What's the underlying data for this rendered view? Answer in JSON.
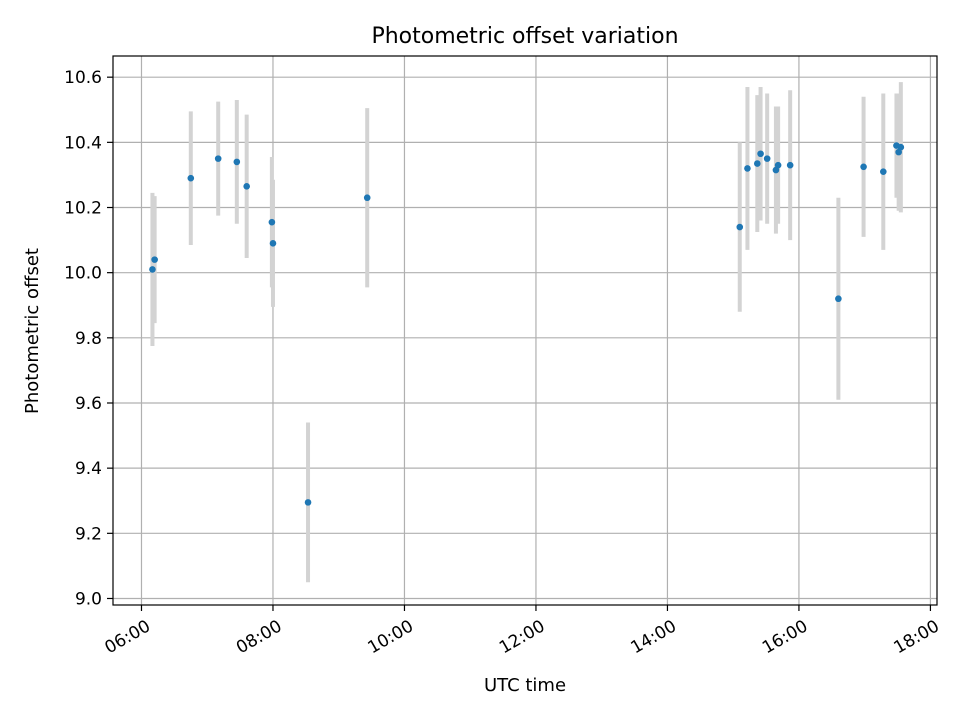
{
  "chart_data": {
    "type": "scatter",
    "title": "Photometric offset variation",
    "xlabel": "UTC time",
    "ylabel": "Photometric offset",
    "x_ticks": [
      "06:00",
      "08:00",
      "10:00",
      "12:00",
      "14:00",
      "16:00",
      "18:00"
    ],
    "y_ticks": [
      "9.0",
      "9.2",
      "9.4",
      "9.6",
      "9.8",
      "10.0",
      "10.2",
      "10.4",
      "10.6"
    ],
    "xlim": [
      "05:34",
      "18:06"
    ],
    "ylim": [
      8.98,
      10.665
    ],
    "grid": true,
    "colors": {
      "points": "#1f77b4",
      "errorbars": "#d3d3d3",
      "grid": "#b0b0b0"
    },
    "series": [
      {
        "points": [
          {
            "time": "06:10",
            "y": 10.01,
            "err": 0.235
          },
          {
            "time": "06:12",
            "y": 10.04,
            "err": 0.195
          },
          {
            "time": "06:45",
            "y": 10.29,
            "err": 0.205
          },
          {
            "time": "07:10",
            "y": 10.35,
            "err": 0.175
          },
          {
            "time": "07:27",
            "y": 10.34,
            "err": 0.19
          },
          {
            "time": "07:36",
            "y": 10.265,
            "err": 0.22
          },
          {
            "time": "07:59",
            "y": 10.155,
            "err": 0.2
          },
          {
            "time": "08:00",
            "y": 10.09,
            "err": 0.195
          },
          {
            "time": "08:32",
            "y": 9.295,
            "err": 0.245
          },
          {
            "time": "09:26",
            "y": 10.23,
            "err": 0.275
          },
          {
            "time": "15:06",
            "y": 10.14,
            "err": 0.26
          },
          {
            "time": "15:13",
            "y": 10.32,
            "err": 0.25
          },
          {
            "time": "15:22",
            "y": 10.335,
            "err": 0.21
          },
          {
            "time": "15:25",
            "y": 10.365,
            "err": 0.205
          },
          {
            "time": "15:31",
            "y": 10.35,
            "err": 0.2
          },
          {
            "time": "15:39",
            "y": 10.315,
            "err": 0.195
          },
          {
            "time": "15:41",
            "y": 10.33,
            "err": 0.18
          },
          {
            "time": "15:52",
            "y": 10.33,
            "err": 0.23
          },
          {
            "time": "16:36",
            "y": 9.92,
            "err": 0.31
          },
          {
            "time": "16:59",
            "y": 10.325,
            "err": 0.215
          },
          {
            "time": "17:17",
            "y": 10.31,
            "err": 0.24
          },
          {
            "time": "17:29",
            "y": 10.39,
            "err": 0.16
          },
          {
            "time": "17:31",
            "y": 10.37,
            "err": 0.18
          },
          {
            "time": "17:33",
            "y": 10.385,
            "err": 0.2
          }
        ]
      }
    ]
  }
}
